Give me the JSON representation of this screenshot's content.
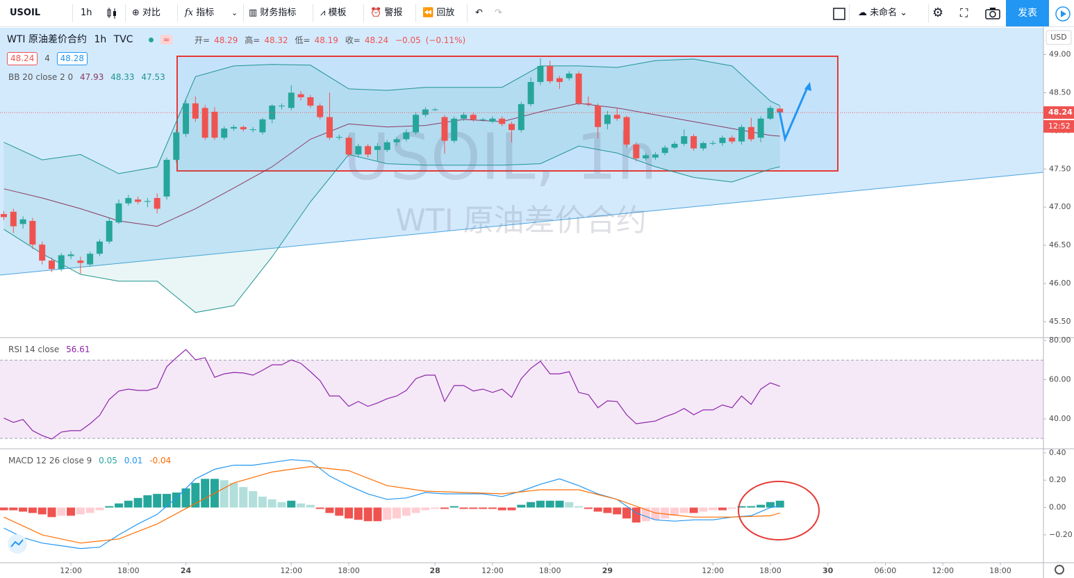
{
  "toolbar": {
    "symbol": "USOIL",
    "interval": "1h",
    "compare": "对比",
    "indicators": "指标",
    "financials": "财务指标",
    "templates": "模板",
    "alert": "警报",
    "replay": "回放",
    "layout_name": "未命名",
    "publish": "发表"
  },
  "legend": {
    "symbol_name": "WTI 原油差价合约",
    "interval": "1h",
    "exchange": "TVC",
    "open_label": "开=",
    "high_label": "高=",
    "low_label": "低=",
    "close_label": "收=",
    "change": "−0.05",
    "change_pct": "(−0.11%)",
    "bid": "48.24",
    "spread": "4",
    "ask": "48.28",
    "countdown": "12:52",
    "currency": "USD"
  },
  "watermark": {
    "line1": "USOIL, 1h",
    "line2": "WTI 原油差价合约"
  },
  "chart_data": [
    {
      "type": "candlestick",
      "up_color": "#26a69a",
      "down_color": "#ef5350",
      "open": [
        46.91,
        46.94,
        46.78,
        46.82,
        46.51,
        46.3,
        46.19,
        46.36,
        46.3,
        46.25,
        46.39,
        46.55,
        46.8,
        47.05,
        47.1,
        47.07,
        47.12,
        47.14,
        47.62,
        47.96,
        48.36,
        48.3,
        48.25,
        47.91,
        48.03,
        48.05,
        48.01,
        47.98,
        48.15,
        48.32,
        48.3,
        48.48,
        48.44,
        48.33,
        48.18,
        47.91,
        47.91,
        47.69,
        47.8,
        47.75,
        47.75,
        47.85,
        47.89,
        47.98,
        48.21,
        48.28,
        48.18,
        47.87,
        48.16,
        48.21,
        48.15,
        48.12,
        48.16,
        48.09,
        48.01,
        48.35,
        48.64,
        48.85,
        48.69,
        48.69,
        48.75,
        48.36,
        48.33,
        48.09,
        48.21,
        48.18,
        47.82,
        47.64,
        47.65,
        47.71,
        47.78,
        47.83,
        47.93,
        47.77,
        47.84,
        47.84,
        47.91,
        47.86,
        48.05,
        47.91,
        48.16,
        48.29
      ],
      "high": [
        46.95,
        46.98,
        46.88,
        46.86,
        46.55,
        46.34,
        46.4,
        46.42,
        46.35,
        46.42,
        46.58,
        46.86,
        47.1,
        47.16,
        47.14,
        47.12,
        47.18,
        47.65,
        48.02,
        48.4,
        48.45,
        48.34,
        48.31,
        48.06,
        48.08,
        48.07,
        48.05,
        48.17,
        48.35,
        48.36,
        48.6,
        48.52,
        48.47,
        48.36,
        48.5,
        47.95,
        47.94,
        47.83,
        47.83,
        47.84,
        47.88,
        47.92,
        48.02,
        48.24,
        48.31,
        48.3,
        48.21,
        48.19,
        48.24,
        48.24,
        48.17,
        48.19,
        48.19,
        48.12,
        48.38,
        48.7,
        48.95,
        48.92,
        48.72,
        48.78,
        48.78,
        48.45,
        48.36,
        48.26,
        48.3,
        48.2,
        47.85,
        47.71,
        47.72,
        47.81,
        47.86,
        48.02,
        47.96,
        47.86,
        47.87,
        47.94,
        47.94,
        48.08,
        48.17,
        48.19,
        48.33,
        48.32
      ],
      "low": [
        46.83,
        46.66,
        46.72,
        46.45,
        46.25,
        46.15,
        46.16,
        46.32,
        46.13,
        46.22,
        46.36,
        46.52,
        46.78,
        47.02,
        47.04,
        47.0,
        46.92,
        47.1,
        47.58,
        47.92,
        48.12,
        47.88,
        47.88,
        47.88,
        48.0,
        47.99,
        47.98,
        47.95,
        48.1,
        48.28,
        48.27,
        48.4,
        48.3,
        48.15,
        47.88,
        47.88,
        47.66,
        47.65,
        47.65,
        47.6,
        47.72,
        47.8,
        47.86,
        47.95,
        48.18,
        48.26,
        47.7,
        47.84,
        48.13,
        48.12,
        48.12,
        48.1,
        48.06,
        47.85,
        47.98,
        48.32,
        48.6,
        48.62,
        48.55,
        48.66,
        48.33,
        48.32,
        47.9,
        48.02,
        48.13,
        47.78,
        47.6,
        47.61,
        47.62,
        47.68,
        47.76,
        47.8,
        47.74,
        47.74,
        47.81,
        47.8,
        47.83,
        47.82,
        47.86,
        47.85,
        48.14,
        48.19
      ],
      "close": [
        46.87,
        46.75,
        46.84,
        46.51,
        46.3,
        46.19,
        46.37,
        46.38,
        46.27,
        46.39,
        46.55,
        46.82,
        47.05,
        47.12,
        47.07,
        47.08,
        46.98,
        47.62,
        47.98,
        48.36,
        48.16,
        47.91,
        47.91,
        48.03,
        48.05,
        48.02,
        48.02,
        48.15,
        48.33,
        48.33,
        48.5,
        48.44,
        48.33,
        48.18,
        47.91,
        47.92,
        47.69,
        47.8,
        47.69,
        47.8,
        47.85,
        47.89,
        47.98,
        48.21,
        48.28,
        48.28,
        47.87,
        48.16,
        48.21,
        48.15,
        48.15,
        48.16,
        48.09,
        48.01,
        48.35,
        48.64,
        48.85,
        48.65,
        48.64,
        48.75,
        48.36,
        48.35,
        48.05,
        48.21,
        48.16,
        47.82,
        47.64,
        47.68,
        47.69,
        47.78,
        47.83,
        47.93,
        47.77,
        47.84,
        47.84,
        47.91,
        47.86,
        48.05,
        47.89,
        48.16,
        48.3,
        48.24
      ],
      "bollinger": {
        "label": "BB 20 close 2 0",
        "fill": "#26a69a",
        "x": [
          0,
          4,
          8,
          12,
          16,
          20,
          24,
          28,
          32,
          36,
          40,
          44,
          48,
          52,
          56,
          60,
          64,
          68,
          72,
          76,
          80,
          81
        ],
        "series": [
          {
            "color": "#8b3a62",
            "values": [
              47.24,
              47.12,
              46.98,
              46.82,
              46.75,
              46.98,
              47.25,
              47.53,
              47.89,
              48.09,
              48.05,
              48.07,
              48.15,
              48.12,
              48.25,
              48.36,
              48.3,
              48.21,
              48.12,
              48.03,
              47.94,
              47.93
            ]
          },
          {
            "color": "#1e9490",
            "values": [
              47.85,
              47.62,
              47.69,
              47.44,
              47.53,
              48.71,
              48.85,
              48.87,
              48.86,
              48.55,
              48.53,
              48.57,
              48.57,
              48.57,
              48.85,
              48.85,
              48.83,
              48.92,
              48.94,
              48.85,
              48.39,
              48.33
            ]
          },
          {
            "color": "#1e9490",
            "values": [
              46.71,
              46.39,
              46.12,
              46.03,
              46.03,
              45.62,
              45.71,
              46.35,
              47.07,
              47.69,
              47.57,
              47.55,
              47.55,
              47.55,
              47.57,
              47.8,
              47.71,
              47.53,
              47.39,
              47.33,
              47.5,
              47.53
            ]
          }
        ]
      },
      "ylim": [
        45.3,
        49.35
      ],
      "yticks": [
        {
          "value": 49,
          "label": "49.00"
        },
        {
          "value": 48.5,
          "label": "48.50"
        },
        {
          "value": 48,
          "label": "48.00"
        },
        {
          "value": 47.5,
          "label": "47.50"
        },
        {
          "value": 47,
          "label": "47.00"
        },
        {
          "value": 46.5,
          "label": "46.50"
        },
        {
          "value": 46,
          "label": "46.00"
        },
        {
          "value": 45.5,
          "label": "45.50"
        }
      ],
      "xlim": [
        -0.4,
        108.5
      ],
      "xticks": [
        {
          "value": 7,
          "label": "12:00"
        },
        {
          "value": 13,
          "label": "18:00"
        },
        {
          "value": 19,
          "label": "24"
        },
        {
          "value": 30,
          "label": "12:00"
        },
        {
          "value": 36,
          "label": "18:00"
        },
        {
          "value": 45,
          "label": "28"
        },
        {
          "value": 51,
          "label": "12:00"
        },
        {
          "value": 57,
          "label": "18:00"
        },
        {
          "value": 63,
          "label": "29"
        },
        {
          "value": 74,
          "label": "12:00"
        },
        {
          "value": 80,
          "label": "18:00"
        },
        {
          "value": 86,
          "label": "30"
        },
        {
          "value": 92,
          "label": "06:00"
        },
        {
          "value": 98,
          "label": "12:00"
        },
        {
          "value": 104,
          "label": "18:00"
        }
      ]
    },
    {
      "type": "line",
      "label": "RSI 14 close",
      "color": "#8e24aa",
      "band": [
        30,
        70
      ],
      "band_color": "#9c27b0",
      "values": [
        40.4,
        38.2,
        39.7,
        34.0,
        31.5,
        29.7,
        33.3,
        34.0,
        34.0,
        37.5,
        41.8,
        49.9,
        54.2,
        55.2,
        54.5,
        54.5,
        55.9,
        66.6,
        71.2,
        75.4,
        70.1,
        71.2,
        61.2,
        63.0,
        63.7,
        63.4,
        62.3,
        64.8,
        67.6,
        67.6,
        70.1,
        68.3,
        64.1,
        59.5,
        51.7,
        51.7,
        46.4,
        48.9,
        46.4,
        48.1,
        50.3,
        51.7,
        54.5,
        60.5,
        62.3,
        62.3,
        48.9,
        57.0,
        57.0,
        54.2,
        55.2,
        53.5,
        55.2,
        51.0,
        60.5,
        65.8,
        69.4,
        63.0,
        63.0,
        64.1,
        53.5,
        52.4,
        45.7,
        49.2,
        48.9,
        42.1,
        37.5,
        38.2,
        38.9,
        41.1,
        42.8,
        45.3,
        42.1,
        44.6,
        44.6,
        47.1,
        45.7,
        51.7,
        47.4,
        55.2,
        58.4,
        56.61
      ],
      "ylim": [
        25.1,
        81.1
      ],
      "yticks": [
        {
          "value": 80,
          "label": "80.00"
        },
        {
          "value": 60,
          "label": "60.00"
        },
        {
          "value": 40,
          "label": "40.00"
        }
      ]
    },
    {
      "type": "macd",
      "label": "MACD 12 26 close 9",
      "histogram": [
        -0.02,
        -0.02,
        -0.03,
        -0.04,
        -0.05,
        -0.07,
        -0.06,
        -0.06,
        -0.05,
        -0.04,
        -0.02,
        0.01,
        0.03,
        0.05,
        0.07,
        0.09,
        0.1,
        0.1,
        0.11,
        0.14,
        0.18,
        0.21,
        0.21,
        0.2,
        0.18,
        0.15,
        0.12,
        0.08,
        0.06,
        0.04,
        0.05,
        0.03,
        0.02,
        -0.01,
        -0.04,
        -0.06,
        -0.08,
        -0.09,
        -0.1,
        -0.1,
        -0.09,
        -0.08,
        -0.06,
        -0.04,
        -0.02,
        -0.01,
        -0.01,
        0.01,
        -0.01,
        -0.01,
        -0.01,
        -0.01,
        -0.02,
        -0.02,
        0.02,
        0.04,
        0.05,
        0.05,
        0.05,
        0.04,
        0.01,
        -0.01,
        -0.03,
        -0.04,
        -0.05,
        -0.08,
        -0.11,
        -0.1,
        -0.09,
        -0.08,
        -0.06,
        -0.04,
        -0.04,
        -0.03,
        -0.02,
        -0.02,
        -0.01,
        0.01,
        0.01,
        0.02,
        0.04,
        0.05
      ],
      "histogram_colors": {
        "up_strong": "#26a69a",
        "up_weak": "#b2dfdb",
        "down_strong": "#ef5350",
        "down_weak": "#ffcdd2"
      },
      "macd": {
        "color": "#2196f3",
        "x": [
          0,
          2,
          4,
          6,
          8,
          10,
          12,
          14,
          16,
          18,
          20,
          22,
          24,
          26,
          28,
          30,
          32,
          34,
          36,
          38,
          40,
          42,
          44,
          46,
          48,
          50,
          52,
          54,
          56,
          58,
          60,
          62,
          64,
          66,
          68,
          70,
          72,
          74,
          76,
          78,
          80,
          81
        ],
        "values": [
          -0.15,
          -0.22,
          -0.26,
          -0.28,
          -0.3,
          -0.29,
          -0.2,
          -0.12,
          -0.05,
          0.07,
          0.21,
          0.28,
          0.31,
          0.31,
          0.33,
          0.35,
          0.34,
          0.23,
          0.16,
          0.1,
          0.06,
          0.07,
          0.11,
          0.1,
          0.1,
          0.1,
          0.08,
          0.12,
          0.17,
          0.21,
          0.16,
          0.1,
          0.06,
          -0.04,
          -0.09,
          -0.1,
          -0.09,
          -0.09,
          -0.07,
          -0.06,
          0.0,
          0.01
        ]
      },
      "signal": {
        "color": "#ff6d00",
        "x": [
          0,
          4,
          8,
          12,
          16,
          20,
          24,
          28,
          32,
          36,
          40,
          44,
          48,
          52,
          56,
          60,
          64,
          68,
          72,
          76,
          80,
          81
        ],
        "values": [
          -0.07,
          -0.2,
          -0.26,
          -0.23,
          -0.12,
          0.03,
          0.18,
          0.26,
          0.3,
          0.27,
          0.16,
          0.12,
          0.11,
          0.1,
          0.13,
          0.13,
          0.06,
          -0.04,
          -0.07,
          -0.07,
          -0.06,
          -0.04
        ]
      },
      "ylim": [
        -0.404,
        0.425
      ],
      "yticks": [
        {
          "value": 0.4,
          "label": "0.40"
        },
        {
          "value": 0.2,
          "label": "0.20"
        },
        {
          "value": 0,
          "label": "0.00"
        },
        {
          "value": -0.2,
          "label": "−0.20"
        }
      ]
    }
  ]
}
